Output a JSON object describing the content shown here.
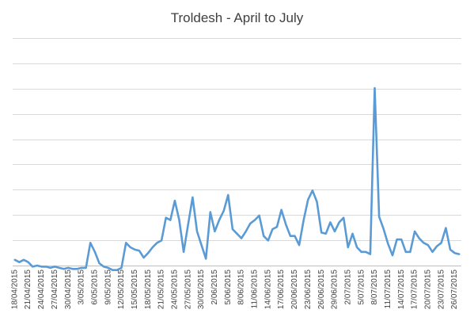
{
  "chart_data": {
    "type": "line",
    "title": "Troldesh - April to July",
    "xlabel": "",
    "ylabel": "",
    "grid": true,
    "legend": "none",
    "y_axis_labels_shown": false,
    "ylim": [
      0,
      10
    ],
    "line_color": "#5b9bd5",
    "x": [
      "18/04/2015",
      "19/04/2015",
      "20/04/2015",
      "21/04/2015",
      "22/04/2015",
      "23/04/2015",
      "24/04/2015",
      "25/04/2015",
      "26/04/2015",
      "27/04/2015",
      "28/04/2015",
      "29/04/2015",
      "30/04/2015",
      "1/05/2015",
      "2/05/2015",
      "3/05/2015",
      "4/05/2015",
      "5/05/2015",
      "6/05/2015",
      "7/05/2015",
      "8/05/2015",
      "9/05/2015",
      "10/05/2015",
      "11/05/2015",
      "12/05/2015",
      "13/05/2015",
      "14/05/2015",
      "15/05/2015",
      "16/05/2015",
      "17/05/2015",
      "18/05/2015",
      "19/05/2015",
      "20/05/2015",
      "21/05/2015",
      "22/05/2015",
      "23/05/2015",
      "24/05/2015",
      "25/05/2015",
      "26/05/2015",
      "27/05/2015",
      "28/05/2015",
      "29/05/2015",
      "30/05/2015",
      "31/05/2015",
      "1/06/2015",
      "2/06/2015",
      "3/06/2015",
      "4/06/2015",
      "5/06/2015",
      "6/06/2015",
      "7/06/2015",
      "8/06/2015",
      "9/06/2015",
      "10/06/2015",
      "11/06/2015",
      "12/06/2015",
      "13/06/2015",
      "14/06/2015",
      "15/06/2015",
      "16/06/2015",
      "17/06/2015",
      "18/06/2015",
      "19/06/2015",
      "20/06/2015",
      "21/06/2015",
      "22/06/2015",
      "23/06/2015",
      "24/06/2015",
      "25/06/2015",
      "26/06/2015",
      "27/06/2015",
      "28/06/2015",
      "29/06/2015",
      "30/06/2015",
      "1/07/2015",
      "2/07/2015",
      "3/07/2015",
      "4/07/2015",
      "5/07/2015",
      "6/07/2015",
      "7/07/2015",
      "8/07/2015",
      "9/07/2015",
      "10/07/2015",
      "11/07/2015",
      "12/07/2015",
      "13/07/2015",
      "14/07/2015",
      "15/07/2015",
      "16/07/2015",
      "17/07/2015",
      "18/07/2015",
      "19/07/2015",
      "20/07/2015",
      "21/07/2015",
      "22/07/2015",
      "23/07/2015",
      "24/07/2015",
      "25/07/2015",
      "26/07/2015",
      "27/07/2015"
    ],
    "tick_labels": [
      "18/04/2015",
      "21/04/2015",
      "24/04/2015",
      "27/04/2015",
      "30/04/2015",
      "3/05/2015",
      "6/05/2015",
      "9/05/2015",
      "12/05/2015",
      "15/05/2015",
      "18/05/2015",
      "21/05/2015",
      "24/05/2015",
      "27/05/2015",
      "30/05/2015",
      "2/06/2015",
      "5/06/2015",
      "8/06/2015",
      "11/06/2015",
      "14/06/2015",
      "17/06/2015",
      "20/06/2015",
      "23/06/2015",
      "26/06/2015",
      "29/06/2015",
      "2/07/2015",
      "5/07/2015",
      "8/07/2015",
      "11/07/2015",
      "14/07/2015",
      "17/07/2015",
      "20/07/2015",
      "23/07/2015",
      "26/07/2015"
    ],
    "series": [
      {
        "name": "",
        "values": [
          0.25,
          0.15,
          0.25,
          0.15,
          -0.05,
          0.0,
          -0.05,
          -0.05,
          -0.1,
          -0.05,
          -0.1,
          -0.15,
          -0.1,
          -0.15,
          -0.15,
          -0.1,
          -0.1,
          1.0,
          0.6,
          0.1,
          -0.05,
          -0.1,
          -0.2,
          -0.2,
          -0.1,
          1.0,
          0.8,
          0.7,
          0.65,
          0.35,
          0.55,
          0.8,
          1.0,
          1.1,
          2.1,
          2.0,
          2.85,
          2.0,
          0.6,
          1.8,
          3.0,
          1.5,
          0.9,
          0.3,
          2.35,
          1.5,
          2.0,
          2.4,
          3.1,
          1.6,
          1.4,
          1.2,
          1.5,
          1.85,
          2.0,
          2.2,
          1.3,
          1.1,
          1.6,
          1.7,
          2.45,
          1.8,
          1.3,
          1.3,
          0.9,
          2.0,
          2.9,
          3.3,
          2.8,
          1.45,
          1.4,
          1.9,
          1.5,
          1.9,
          2.1,
          0.8,
          1.4,
          0.8,
          0.6,
          0.6,
          0.5,
          7.8,
          2.15,
          1.6,
          0.95,
          0.45,
          1.15,
          1.15,
          0.6,
          0.6,
          1.5,
          1.2,
          1.0,
          0.9,
          0.6,
          0.85,
          1.0,
          1.65,
          0.7,
          0.55,
          0.5
        ]
      }
    ]
  }
}
